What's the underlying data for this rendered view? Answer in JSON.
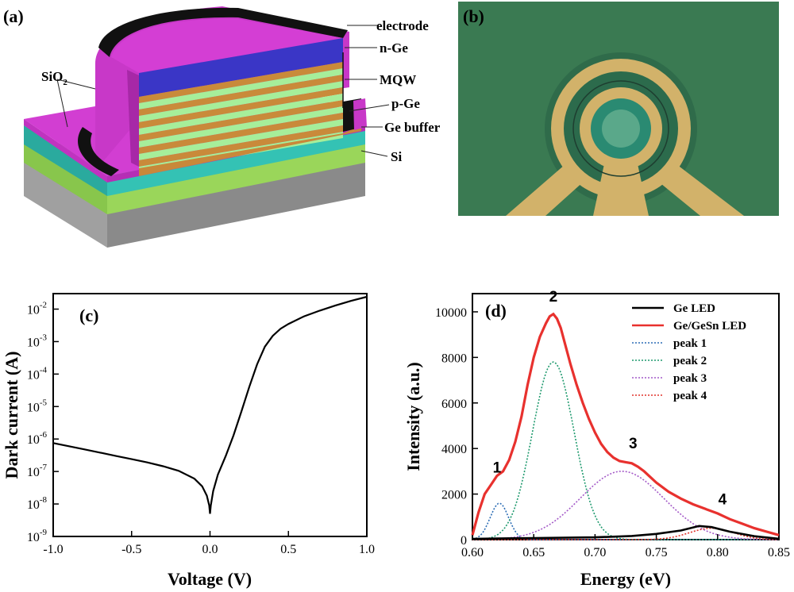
{
  "panel_a": {
    "letter": "(a)",
    "labels": {
      "electrode": "electrode",
      "nge": "n-Ge",
      "mqw": "MQW",
      "pge": "p-Ge",
      "gebuffer": "Ge buffer",
      "si": "Si",
      "sio2_main": "SiO",
      "sio2_sub": "2"
    },
    "colors": {
      "magenta": "#cc33cc",
      "blue": "#3838c8",
      "orange": "#c88838",
      "light_green": "#a6ee9a",
      "teal": "#30c0b0",
      "green": "#96d656",
      "gray": "#a8a8a8",
      "black": "#111111"
    }
  },
  "panel_b": {
    "letter": "(b)",
    "colors": {
      "background": "#3a7a52",
      "gold": "#d2b26a",
      "ring_dark": "#2e5e4a"
    }
  },
  "chart_data": [
    {
      "id": "c",
      "type": "line",
      "letter": "(c)",
      "xlabel": "Voltage (V)",
      "ylabel": "Dark current (A)",
      "xlim": [
        -1.0,
        1.0
      ],
      "ylim": [
        1e-09,
        0.03
      ],
      "yscale": "log",
      "xticks": [
        "-1.0",
        "-0.5",
        "0.0",
        "0.5",
        "1.0"
      ],
      "yticks_exp": [
        "-9",
        "-8",
        "-7",
        "-6",
        "-5",
        "-4",
        "-3",
        "-2"
      ],
      "ytick_base": "10",
      "series": [
        {
          "color": "#000000",
          "x": [
            -1.0,
            -0.9,
            -0.8,
            -0.7,
            -0.6,
            -0.5,
            -0.4,
            -0.3,
            -0.2,
            -0.1,
            -0.05,
            -0.02,
            -0.005,
            0.0,
            0.005,
            0.02,
            0.05,
            0.1,
            0.15,
            0.2,
            0.25,
            0.3,
            0.35,
            0.4,
            0.45,
            0.5,
            0.6,
            0.7,
            0.8,
            0.9,
            1.0
          ],
          "y": [
            7.5e-07,
            6e-07,
            4.8e-07,
            3.8e-07,
            3e-07,
            2.4e-07,
            1.9e-07,
            1.45e-07,
            1.05e-07,
            6e-08,
            3.5e-08,
            1.8e-08,
            9e-09,
            5e-09,
            9e-09,
            2.5e-08,
            8e-08,
            3e-07,
            1.3e-06,
            7e-06,
            4e-05,
            0.0002,
            0.0007,
            0.0015,
            0.0025,
            0.0035,
            0.006,
            0.009,
            0.013,
            0.018,
            0.024
          ]
        }
      ]
    },
    {
      "id": "d",
      "type": "line",
      "letter": "(d)",
      "xlabel": "Energy (eV)",
      "ylabel": "Intensity (a.u.)",
      "xlim": [
        0.6,
        0.85
      ],
      "ylim": [
        0,
        10800
      ],
      "xticks": [
        "0.60",
        "0.65",
        "0.70",
        "0.75",
        "0.80",
        "0.85"
      ],
      "yticks": [
        "0",
        "2000",
        "4000",
        "6000",
        "8000",
        "10000"
      ],
      "legend": "top-right",
      "annotations": [
        "1",
        "2",
        "3",
        "4"
      ],
      "series": [
        {
          "name": "Ge LED",
          "color": "#000000",
          "style": "solid",
          "x": [
            0.6,
            0.62,
            0.65,
            0.7,
            0.73,
            0.75,
            0.77,
            0.785,
            0.795,
            0.81,
            0.83,
            0.85
          ],
          "y": [
            30,
            50,
            70,
            100,
            160,
            250,
            400,
            600,
            550,
            350,
            150,
            40
          ]
        },
        {
          "name": "Ge/GeSn LED",
          "color": "#e8312e",
          "style": "solid",
          "x": [
            0.6,
            0.605,
            0.61,
            0.615,
            0.62,
            0.625,
            0.63,
            0.635,
            0.64,
            0.645,
            0.65,
            0.655,
            0.66,
            0.663,
            0.666,
            0.669,
            0.672,
            0.675,
            0.68,
            0.685,
            0.69,
            0.695,
            0.7,
            0.705,
            0.71,
            0.715,
            0.72,
            0.725,
            0.73,
            0.735,
            0.74,
            0.745,
            0.75,
            0.76,
            0.77,
            0.78,
            0.79,
            0.8,
            0.81,
            0.82,
            0.83,
            0.84,
            0.85
          ],
          "y": [
            200,
            1200,
            2000,
            2400,
            2800,
            3000,
            3500,
            4300,
            5400,
            6800,
            8000,
            8900,
            9500,
            9800,
            9900,
            9700,
            9300,
            8700,
            7700,
            6800,
            6000,
            5300,
            4700,
            4200,
            3850,
            3600,
            3450,
            3400,
            3350,
            3200,
            3000,
            2750,
            2500,
            2100,
            1800,
            1550,
            1350,
            1150,
            900,
            700,
            500,
            350,
            200
          ]
        },
        {
          "name": "peak 1",
          "color": "#2c6db5",
          "style": "dotted",
          "gauss": {
            "center": 0.622,
            "amp": 1600,
            "sigma": 0.0075
          }
        },
        {
          "name": "peak 2",
          "color": "#1f9a6e",
          "style": "dotted",
          "gauss": {
            "center": 0.666,
            "amp": 7800,
            "sigma": 0.017
          }
        },
        {
          "name": "peak 3",
          "color": "#a45ac8",
          "style": "dotted",
          "gauss": {
            "center": 0.722,
            "amp": 3000,
            "sigma": 0.034
          }
        },
        {
          "name": "peak 4",
          "color": "#e0342c",
          "style": "dotted",
          "gauss": {
            "center": 0.795,
            "amp": 500,
            "sigma": 0.018
          }
        }
      ]
    }
  ]
}
